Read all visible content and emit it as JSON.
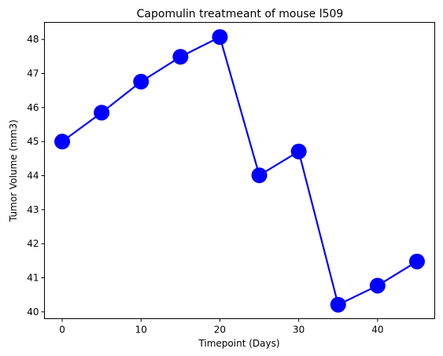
{
  "chart_data": {
    "type": "line",
    "title": "Capomulin treatmeant of mouse l509",
    "xlabel": "Timepoint (Days)",
    "ylabel": "Tumor Volume (mm3)",
    "xlim": [
      -2.25,
      47.25
    ],
    "ylim": [
      39.8,
      48.5
    ],
    "xticks": [
      0,
      10,
      20,
      30,
      40
    ],
    "yticks": [
      40,
      41,
      42,
      43,
      44,
      45,
      46,
      47,
      48
    ],
    "grid": false,
    "series": [
      {
        "color": "#0000ff",
        "marker": "circle",
        "x": [
          0,
          5,
          10,
          15,
          20,
          25,
          30,
          35,
          40,
          45
        ],
        "y": [
          45.0,
          45.85,
          46.76,
          47.49,
          48.07,
          44.01,
          44.71,
          40.21,
          40.77,
          41.48
        ]
      }
    ]
  }
}
